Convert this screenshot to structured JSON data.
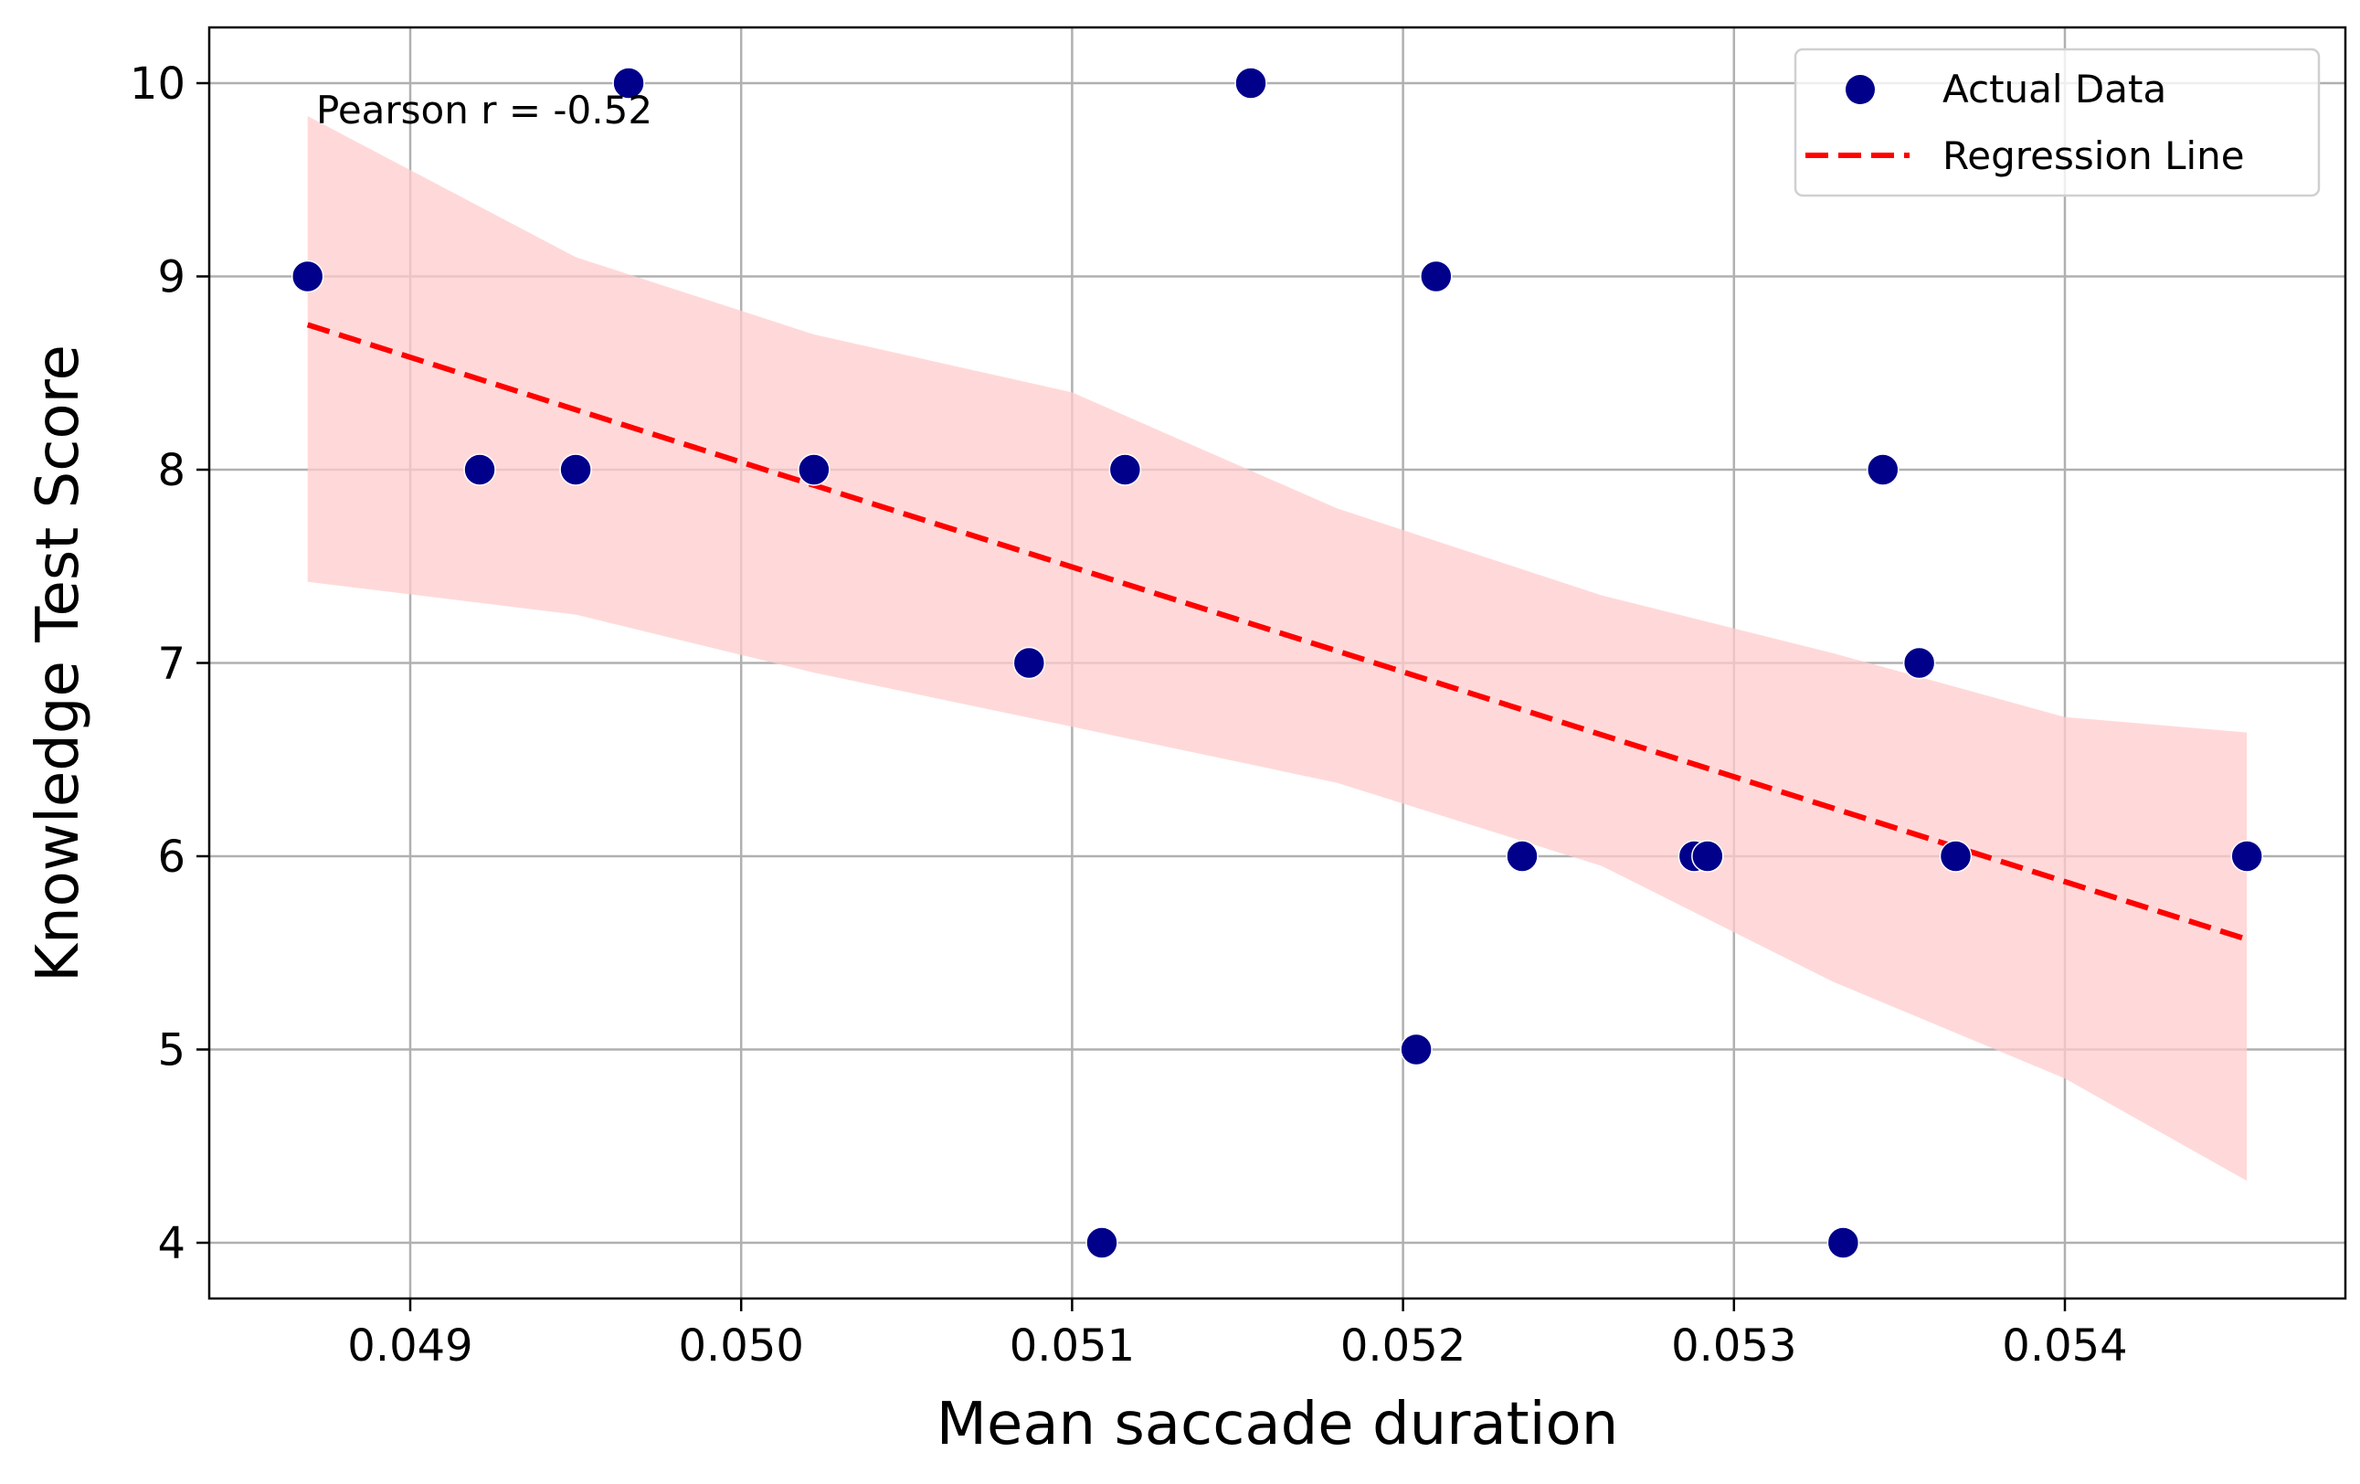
{
  "chart_data": {
    "type": "scatter",
    "title": "",
    "xlabel": "Mean saccade duration",
    "ylabel": "Knowledge Test Score",
    "xlim": [
      0.04843,
      0.05488
    ],
    "ylim": [
      3.7,
      10.3
    ],
    "xticks": [
      0.049,
      0.05,
      0.051,
      0.052,
      0.053,
      0.054
    ],
    "xtick_labels": [
      "0.049",
      "0.050",
      "0.051",
      "0.052",
      "0.053",
      "0.054"
    ],
    "yticks": [
      4,
      5,
      6,
      7,
      8,
      9,
      10
    ],
    "ytick_labels": [
      "4",
      "5",
      "6",
      "7",
      "8",
      "9",
      "10"
    ],
    "grid": true,
    "annotation": "Pearson r = -0.52",
    "legend": {
      "placement": "top-right",
      "entries": [
        "Actual Data",
        "Regression Line"
      ]
    },
    "colors": {
      "points": "#00008b",
      "regression": "#ff0000",
      "band": "#ffcccc",
      "grid": "#b0b0b0"
    },
    "series": [
      {
        "name": "Actual Data",
        "x": [
          0.04869,
          0.04921,
          0.0495,
          0.04966,
          0.05022,
          0.05087,
          0.05109,
          0.05116,
          0.05154,
          0.05204,
          0.0521,
          0.05236,
          0.05288,
          0.05292,
          0.05333,
          0.05345,
          0.05356,
          0.05367,
          0.05455
        ],
        "y": [
          9,
          8,
          8,
          10,
          8,
          7,
          4,
          8,
          10,
          5,
          9,
          6,
          6,
          6,
          4,
          8,
          7,
          6,
          6
        ]
      },
      {
        "name": "Regression Line",
        "x": [
          0.04869,
          0.05455
        ],
        "y": [
          8.75,
          5.57
        ]
      }
    ],
    "confidence_band": {
      "x": [
        0.04869,
        0.0495,
        0.05022,
        0.051,
        0.0518,
        0.0526,
        0.0533,
        0.054,
        0.05455
      ],
      "upper": [
        9.83,
        9.1,
        8.7,
        8.4,
        7.8,
        7.35,
        7.05,
        6.72,
        6.64
      ],
      "lower": [
        7.42,
        7.25,
        6.95,
        6.67,
        6.38,
        5.95,
        5.35,
        4.85,
        4.32
      ]
    }
  }
}
